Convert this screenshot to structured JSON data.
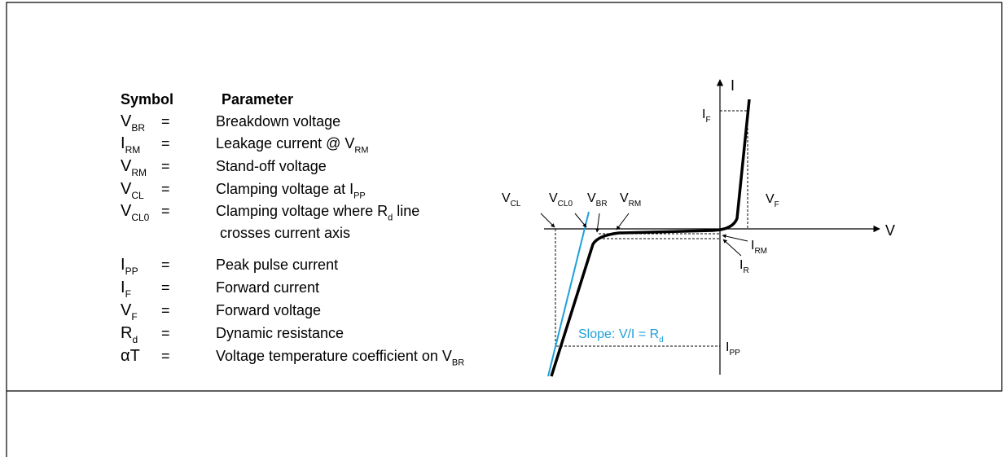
{
  "table": {
    "header": [
      "Symbol",
      "Parameter"
    ],
    "rows": [
      {
        "symbol": [
          {
            "t": "V"
          },
          {
            "sub": "BR"
          }
        ],
        "eq": "=",
        "parameter": [
          {
            "t": "Breakdown voltage"
          }
        ]
      },
      {
        "symbol": [
          {
            "t": "I"
          },
          {
            "sub": "RM"
          }
        ],
        "eq": "=",
        "parameter": [
          {
            "t": "Leakage current @ V"
          },
          {
            "sub": "RM"
          }
        ]
      },
      {
        "symbol": [
          {
            "t": "V"
          },
          {
            "sub": "RM"
          }
        ],
        "eq": "=",
        "parameter": [
          {
            "t": "Stand-off voltage"
          }
        ]
      },
      {
        "symbol": [
          {
            "t": "V"
          },
          {
            "sub": "CL"
          }
        ],
        "eq": "=",
        "parameter": [
          {
            "t": "Clamping voltage at I"
          },
          {
            "sub": "PP"
          }
        ]
      },
      {
        "symbol": [
          {
            "t": "V"
          },
          {
            "sub": "CL0"
          }
        ],
        "eq": "=",
        "parameter": [
          {
            "t": "Clamping voltage where R"
          },
          {
            "sub": "d"
          },
          {
            "t": " line"
          }
        ],
        "continuation": "crosses current axis"
      },
      {
        "symbol": [
          {
            "t": "I"
          },
          {
            "sub": "PP"
          }
        ],
        "eq": "=",
        "parameter": [
          {
            "t": "Peak pulse current"
          }
        ]
      },
      {
        "symbol": [
          {
            "t": "I"
          },
          {
            "sub": "F"
          }
        ],
        "eq": "=",
        "parameter": [
          {
            "t": "Forward current"
          }
        ]
      },
      {
        "symbol": [
          {
            "t": "V"
          },
          {
            "sub": "F"
          }
        ],
        "eq": "=",
        "parameter": [
          {
            "t": "Forward voltage"
          }
        ]
      },
      {
        "symbol": [
          {
            "t": "R"
          },
          {
            "sub": "d"
          }
        ],
        "eq": "=",
        "parameter": [
          {
            "t": "Dynamic resistance"
          }
        ]
      },
      {
        "symbol": [
          {
            "t": "αT"
          }
        ],
        "eq": "=",
        "parameter": [
          {
            "t": "Voltage temperature coefficient on V"
          },
          {
            "sub": "BR"
          }
        ]
      }
    ]
  },
  "diagram": {
    "labels": [
      [
        {
          "t": "I"
        }
      ],
      [
        {
          "t": "V"
        }
      ],
      [
        {
          "t": "I"
        },
        {
          "sub": "F"
        }
      ],
      [
        {
          "t": "V"
        },
        {
          "sub": "F"
        }
      ],
      [
        {
          "t": "V"
        },
        {
          "sub": "CL"
        }
      ],
      [
        {
          "t": "V"
        },
        {
          "sub": "CL0"
        }
      ],
      [
        {
          "t": "V"
        },
        {
          "sub": "BR"
        }
      ],
      [
        {
          "t": "V"
        },
        {
          "sub": "RM"
        }
      ],
      [
        {
          "t": "I"
        },
        {
          "sub": "RM"
        }
      ],
      [
        {
          "t": "I"
        },
        {
          "sub": "R"
        }
      ],
      [
        {
          "t": "I"
        },
        {
          "sub": "PP"
        }
      ]
    ],
    "slope": [
      {
        "t": "Slope: V/I = R"
      },
      {
        "sub": "d"
      }
    ]
  }
}
